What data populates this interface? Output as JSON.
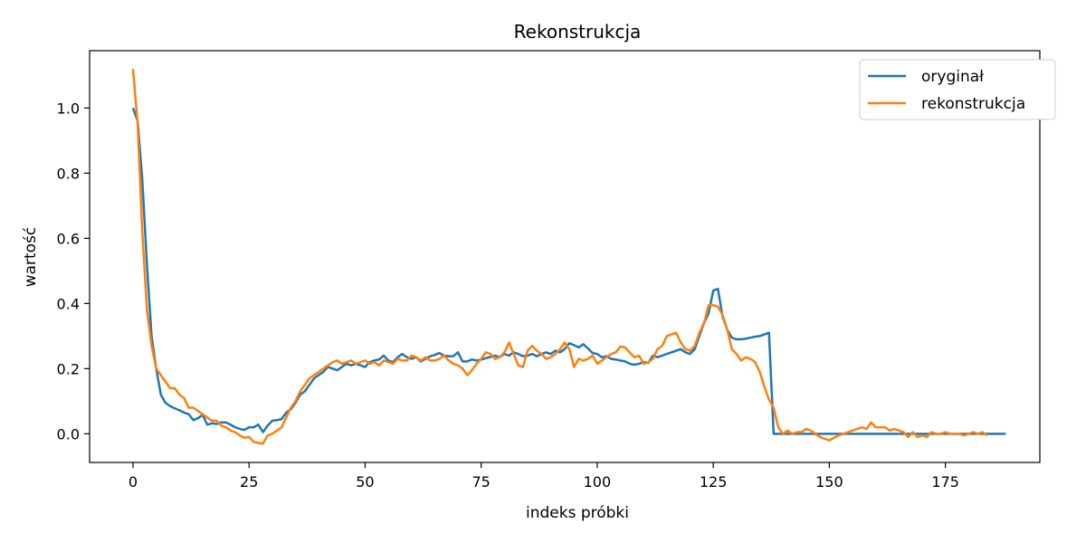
{
  "chart_data": {
    "type": "line",
    "title": "Rekonstrukcja",
    "xlabel": "indeks próbki",
    "ylabel": "wartość",
    "xlim": [
      -9.35,
      195.35
    ],
    "ylim": [
      -0.088,
      1.176
    ],
    "xticks": [
      0,
      25,
      50,
      75,
      100,
      125,
      150,
      175
    ],
    "yticks": [
      0.0,
      0.2,
      0.4,
      0.6,
      0.8,
      1.0
    ],
    "ytick_labels": [
      "0.0",
      "0.2",
      "0.4",
      "0.6",
      "0.8",
      "1.0"
    ],
    "grid": false,
    "legend": "top-right",
    "series": [
      {
        "name": "oryginał",
        "color": "#1f77b4",
        "values": [
          1.0,
          0.96,
          0.78,
          0.52,
          0.3,
          0.2,
          0.12,
          0.095,
          0.085,
          0.078,
          0.072,
          0.065,
          0.06,
          0.042,
          0.048,
          0.058,
          0.028,
          0.032,
          0.03,
          0.035,
          0.035,
          0.028,
          0.02,
          0.015,
          0.012,
          0.02,
          0.02,
          0.028,
          0.005,
          0.025,
          0.04,
          0.042,
          0.045,
          0.065,
          0.075,
          0.095,
          0.12,
          0.13,
          0.15,
          0.17,
          0.18,
          0.19,
          0.205,
          0.2,
          0.195,
          0.205,
          0.215,
          0.21,
          0.215,
          0.21,
          0.205,
          0.22,
          0.225,
          0.228,
          0.24,
          0.225,
          0.22,
          0.235,
          0.245,
          0.235,
          0.23,
          0.235,
          0.222,
          0.23,
          0.238,
          0.242,
          0.248,
          0.24,
          0.238,
          0.238,
          0.25,
          0.222,
          0.222,
          0.228,
          0.225,
          0.228,
          0.232,
          0.236,
          0.24,
          0.235,
          0.245,
          0.24,
          0.25,
          0.245,
          0.238,
          0.24,
          0.245,
          0.238,
          0.245,
          0.25,
          0.245,
          0.255,
          0.25,
          0.26,
          0.278,
          0.272,
          0.265,
          0.275,
          0.262,
          0.248,
          0.245,
          0.235,
          0.238,
          0.23,
          0.228,
          0.225,
          0.222,
          0.215,
          0.212,
          0.215,
          0.22,
          0.218,
          0.24,
          0.235,
          0.24,
          0.245,
          0.25,
          0.255,
          0.26,
          0.25,
          0.245,
          0.26,
          0.3,
          0.34,
          0.37,
          0.44,
          0.445,
          0.36,
          0.32,
          0.295,
          0.29,
          0.29,
          0.292,
          0.295,
          0.298,
          0.3,
          0.305,
          0.31,
          0.0,
          0.0,
          0.0,
          0.0,
          0.0,
          0.0,
          0.0,
          0.0,
          0.0,
          0.0,
          0.0,
          0.0,
          0.0,
          0.0,
          0.0,
          0.0,
          0.0,
          0.0,
          0.0,
          0.0,
          0.0,
          0.0,
          0.0,
          0.0,
          0.0,
          0.0,
          0.0,
          0.0,
          0.0,
          0.0,
          0.0,
          0.0,
          0.0,
          0.0,
          0.0,
          0.0,
          0.0,
          0.0,
          0.0,
          0.0,
          0.0,
          0.0,
          0.0,
          0.0,
          0.0,
          0.0,
          0.0,
          0.0,
          0.0,
          0.0,
          0.0
        ]
      },
      {
        "name": "rekonstrukcja",
        "color": "#ff7f0e",
        "values": [
          1.12,
          0.95,
          0.62,
          0.38,
          0.27,
          0.2,
          0.18,
          0.16,
          0.14,
          0.14,
          0.12,
          0.11,
          0.08,
          0.08,
          0.07,
          0.06,
          0.05,
          0.04,
          0.04,
          0.025,
          0.02,
          0.01,
          0.005,
          -0.005,
          -0.012,
          -0.01,
          -0.025,
          -0.028,
          -0.03,
          -0.005,
          0.0,
          0.01,
          0.02,
          0.05,
          0.08,
          0.1,
          0.13,
          0.15,
          0.17,
          0.18,
          0.19,
          0.2,
          0.21,
          0.22,
          0.225,
          0.215,
          0.22,
          0.225,
          0.215,
          0.22,
          0.225,
          0.215,
          0.22,
          0.21,
          0.225,
          0.22,
          0.215,
          0.23,
          0.225,
          0.225,
          0.24,
          0.235,
          0.225,
          0.235,
          0.225,
          0.225,
          0.23,
          0.24,
          0.225,
          0.215,
          0.21,
          0.2,
          0.18,
          0.195,
          0.215,
          0.23,
          0.25,
          0.245,
          0.23,
          0.235,
          0.25,
          0.28,
          0.245,
          0.21,
          0.205,
          0.255,
          0.27,
          0.255,
          0.245,
          0.23,
          0.235,
          0.245,
          0.26,
          0.28,
          0.26,
          0.205,
          0.23,
          0.225,
          0.23,
          0.24,
          0.215,
          0.225,
          0.235,
          0.245,
          0.25,
          0.268,
          0.265,
          0.25,
          0.235,
          0.24,
          0.215,
          0.22,
          0.23,
          0.26,
          0.27,
          0.3,
          0.305,
          0.31,
          0.28,
          0.26,
          0.255,
          0.27,
          0.31,
          0.34,
          0.395,
          0.395,
          0.39,
          0.365,
          0.32,
          0.26,
          0.245,
          0.225,
          0.235,
          0.23,
          0.22,
          0.19,
          0.145,
          0.105,
          0.08,
          0.02,
          0.0,
          0.01,
          0.0,
          0.005,
          0.005,
          0.015,
          0.01,
          0.0,
          -0.01,
          -0.015,
          -0.02,
          -0.012,
          -0.005,
          0.0,
          0.005,
          0.01,
          0.015,
          0.02,
          0.015,
          0.035,
          0.02,
          0.02,
          0.02,
          0.01,
          0.015,
          0.01,
          0.005,
          -0.01,
          0.005,
          -0.01,
          -0.005,
          -0.01,
          0.005,
          0.0,
          0.0,
          0.005,
          0.0,
          0.0,
          0.0,
          -0.005,
          0.0,
          0.005,
          0.0,
          0.005,
          -0.005
        ]
      }
    ]
  }
}
